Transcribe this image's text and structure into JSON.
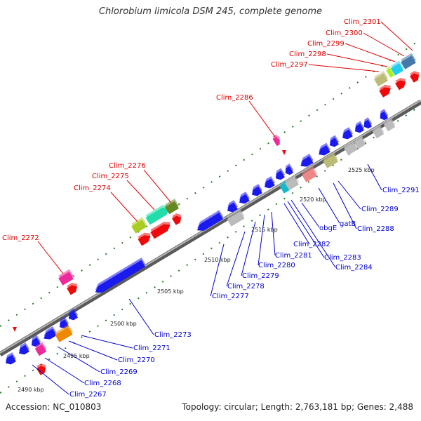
{
  "title": "Chlorobium limicola DSM 245, complete genome",
  "accession": "Accession: NC_010803",
  "summary": "Topology: circular; Length: 2,763,181 bp; Genes: 2,488",
  "colors": {
    "forward_label": "#dd0000",
    "reverse_label": "#0000cc",
    "blue_gene": "#1a1aee",
    "red_gene": "#ee0a0a",
    "backbone": "#808080",
    "tick": "#2a7a2a"
  },
  "forward_labels": [
    {
      "id": "clim-2301",
      "text": "Clim_2301"
    },
    {
      "id": "clim-2300",
      "text": "Clim_2300"
    },
    {
      "id": "clim-2299",
      "text": "Clim_2299"
    },
    {
      "id": "clim-2298",
      "text": "Clim_2298"
    },
    {
      "id": "clim-2297",
      "text": "Clim_2297"
    },
    {
      "id": "clim-2286",
      "text": "Clim_2286"
    },
    {
      "id": "clim-2276",
      "text": "Clim_2276"
    },
    {
      "id": "clim-2275",
      "text": "Clim_2275"
    },
    {
      "id": "clim-2274",
      "text": "Clim_2274"
    },
    {
      "id": "clim-2272",
      "text": "Clim_2272"
    }
  ],
  "reverse_labels": [
    {
      "id": "clim-2291",
      "text": "Clim_2291"
    },
    {
      "id": "clim-2289",
      "text": "Clim_2289"
    },
    {
      "id": "clim-2288",
      "text": "Clim_2288"
    },
    {
      "id": "gatb",
      "text": "gatB"
    },
    {
      "id": "obge",
      "text": "obgE"
    },
    {
      "id": "clim-2284",
      "text": "Clim_2284"
    },
    {
      "id": "clim-2283",
      "text": "Clim_2283"
    },
    {
      "id": "clim-2282",
      "text": "Clim_2282"
    },
    {
      "id": "clim-2281",
      "text": "Clim_2281"
    },
    {
      "id": "clim-2280",
      "text": "Clim_2280"
    },
    {
      "id": "clim-2279",
      "text": "Clim_2279"
    },
    {
      "id": "clim-2278",
      "text": "Clim_2278"
    },
    {
      "id": "clim-2277",
      "text": "Clim_2277"
    },
    {
      "id": "clim-2273",
      "text": "Clim_2273"
    },
    {
      "id": "clim-2271",
      "text": "Clim_2271"
    },
    {
      "id": "clim-2270",
      "text": "Clim_2270"
    },
    {
      "id": "clim-2269",
      "text": "Clim_2269"
    },
    {
      "id": "clim-2268",
      "text": "Clim_2268"
    },
    {
      "id": "clim-2267",
      "text": "Clim_2267"
    }
  ],
  "scale_labels": [
    "2490 kbp",
    "2495 kbp",
    "2500 kbp",
    "2505 kbp",
    "2510 kbp",
    "2515 kbp",
    "2520 kbp",
    "2525 kbp"
  ]
}
